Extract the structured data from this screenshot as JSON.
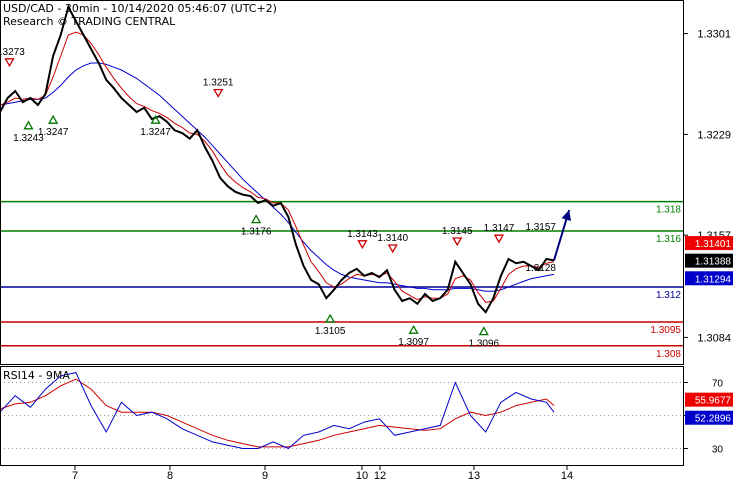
{
  "header": {
    "title": "USD/CAD - 30min - 10/14/2020 05:46:07 (UTC+2)",
    "subtitle": "Research © TRADING CENTRAL"
  },
  "colors": {
    "price": "#000000",
    "ma_fast": "#cc0000",
    "ma_slow": "#0000cc",
    "resistance_green": "#008000",
    "pivot_blue": "#000099",
    "support_red": "#cc0000",
    "arrow": "#000080",
    "current_price_bg": "#000000",
    "last_red_bg": "#ee0000",
    "last_blue_bg": "#0000cc"
  },
  "chart_data": [
    {
      "type": "line",
      "name": "price",
      "x_ticks": [
        "7",
        "8",
        "9",
        "10",
        "12",
        "13",
        "14"
      ],
      "y_ticks": [
        1.3301,
        1.3229,
        1.3157,
        1.3084
      ],
      "ylim": [
        1.3065,
        1.3325
      ],
      "levels": [
        {
          "label": "1.318",
          "value": 1.3181,
          "color": "green"
        },
        {
          "label": "1.316",
          "value": 1.316,
          "color": "green"
        },
        {
          "label": "1.312",
          "value": 1.312,
          "color": "blue"
        },
        {
          "label": "1.3095",
          "value": 1.3095,
          "color": "red"
        },
        {
          "label": "1.308",
          "value": 1.3078,
          "color": "red"
        }
      ],
      "price_tags": [
        {
          "label": "1.31401",
          "value": 1.31401,
          "style": "red"
        },
        {
          "label": "1.31388",
          "value": 1.31388,
          "style": "black"
        },
        {
          "label": "1.31294",
          "value": 1.31294,
          "style": "blue"
        }
      ],
      "annotations": [
        {
          "text": "1.3273",
          "x": 5,
          "y": 1.3273,
          "marker": "down"
        },
        {
          "text": "1.3243",
          "x": 15,
          "y": 1.3243,
          "marker": "up"
        },
        {
          "text": "1.3247",
          "x": 28,
          "y": 1.3247,
          "marker": "up"
        },
        {
          "text": "1.3247",
          "x": 82,
          "y": 1.3247,
          "marker": "up"
        },
        {
          "text": "1.3251",
          "x": 115,
          "y": 1.3251,
          "marker": "down"
        },
        {
          "text": "1.3176",
          "x": 135,
          "y": 1.3176,
          "marker": "up"
        },
        {
          "text": "1.3105",
          "x": 174,
          "y": 1.3105,
          "marker": "up"
        },
        {
          "text": "1.3143",
          "x": 191,
          "y": 1.3143,
          "marker": "down"
        },
        {
          "text": "1.3140",
          "x": 207,
          "y": 1.314,
          "marker": "down"
        },
        {
          "text": "1.3097",
          "x": 218,
          "y": 1.3097,
          "marker": "up"
        },
        {
          "text": "1.3145",
          "x": 241,
          "y": 1.3145,
          "marker": "down"
        },
        {
          "text": "1.3096",
          "x": 255,
          "y": 1.3096,
          "marker": "up"
        },
        {
          "text": "1.3147",
          "x": 263,
          "y": 1.3147,
          "marker": "down"
        },
        {
          "text": "1.3128",
          "x": 285,
          "y": 1.3128,
          "marker": "none"
        },
        {
          "text": "1.3157",
          "x": 285,
          "y": 1.3157,
          "marker": "none"
        }
      ],
      "x": [
        0,
        4,
        8,
        12,
        16,
        20,
        24,
        28,
        32,
        36,
        40,
        44,
        48,
        52,
        56,
        60,
        64,
        68,
        72,
        76,
        80,
        84,
        88,
        92,
        96,
        100,
        104,
        108,
        112,
        116,
        120,
        124,
        128,
        132,
        136,
        140,
        144,
        148,
        152,
        156,
        160,
        164,
        168,
        172,
        176,
        180,
        184,
        188,
        192,
        196,
        200,
        204,
        208,
        212,
        216,
        220,
        224,
        228,
        232,
        236,
        240,
        244,
        248,
        252,
        256,
        260,
        264,
        268,
        272,
        276,
        280,
        284,
        288,
        292
      ],
      "values": [
        1.3245,
        1.3255,
        1.326,
        1.3252,
        1.3255,
        1.325,
        1.3258,
        1.3285,
        1.33,
        1.332,
        1.331,
        1.33,
        1.329,
        1.328,
        1.3268,
        1.3262,
        1.3255,
        1.325,
        1.3245,
        1.3248,
        1.324,
        1.3242,
        1.3238,
        1.3232,
        1.323,
        1.3226,
        1.3232,
        1.322,
        1.321,
        1.3198,
        1.3192,
        1.3188,
        1.3186,
        1.3185,
        1.318,
        1.3182,
        1.3178,
        1.318,
        1.317,
        1.315,
        1.3135,
        1.3125,
        1.3122,
        1.3112,
        1.3118,
        1.3125,
        1.313,
        1.3133,
        1.3128,
        1.313,
        1.3127,
        1.3132,
        1.3118,
        1.311,
        1.3112,
        1.3108,
        1.3115,
        1.311,
        1.3112,
        1.3118,
        1.3138,
        1.313,
        1.3122,
        1.3108,
        1.3102,
        1.3112,
        1.3128,
        1.314,
        1.3137,
        1.3138,
        1.3135,
        1.3132,
        1.314,
        1.3139
      ],
      "ma_fast": [
        1.325,
        1.3252,
        1.3255,
        1.3254,
        1.3255,
        1.3254,
        1.3257,
        1.327,
        1.3285,
        1.33,
        1.3302,
        1.33,
        1.3294,
        1.3286,
        1.3277,
        1.3269,
        1.3262,
        1.3256,
        1.3251,
        1.3249,
        1.3246,
        1.3244,
        1.3241,
        1.3237,
        1.3234,
        1.323,
        1.3229,
        1.3224,
        1.3217,
        1.3208,
        1.32,
        1.3195,
        1.3191,
        1.3188,
        1.3184,
        1.3183,
        1.318,
        1.318,
        1.3175,
        1.3163,
        1.315,
        1.3138,
        1.3131,
        1.3123,
        1.312,
        1.3122,
        1.3126,
        1.3129,
        1.3128,
        1.3129,
        1.3128,
        1.313,
        1.3124,
        1.3117,
        1.3114,
        1.3111,
        1.3113,
        1.3112,
        1.3112,
        1.3115,
        1.3126,
        1.3128,
        1.3125,
        1.3116,
        1.3109,
        1.311,
        1.3119,
        1.3129,
        1.3133,
        1.3135,
        1.3135,
        1.3134,
        1.3137,
        1.3138
      ],
      "ma_slow": [
        1.325,
        1.3251,
        1.3252,
        1.3253,
        1.3254,
        1.3254,
        1.3255,
        1.3259,
        1.3264,
        1.327,
        1.3275,
        1.3278,
        1.328,
        1.328,
        1.3279,
        1.3277,
        1.3275,
        1.3272,
        1.3269,
        1.3265,
        1.3261,
        1.3257,
        1.3252,
        1.3247,
        1.3242,
        1.3237,
        1.3232,
        1.3227,
        1.3221,
        1.3215,
        1.3209,
        1.3203,
        1.3197,
        1.3192,
        1.3187,
        1.3182,
        1.3177,
        1.3172,
        1.3166,
        1.3159,
        1.3152,
        1.3146,
        1.3141,
        1.3136,
        1.3132,
        1.3129,
        1.3127,
        1.3126,
        1.3125,
        1.3124,
        1.3123,
        1.3123,
        1.3122,
        1.3121,
        1.312,
        1.3119,
        1.3119,
        1.3118,
        1.3118,
        1.3118,
        1.3119,
        1.3119,
        1.3119,
        1.3118,
        1.3117,
        1.3117,
        1.3118,
        1.312,
        1.3122,
        1.3124,
        1.3126,
        1.3127,
        1.3128,
        1.3129
      ],
      "projection": [
        [
          292,
          1.3139
        ],
        [
          300,
          1.3175
        ]
      ]
    },
    {
      "type": "line",
      "name": "RSI14 - 9MA",
      "title": "RSI14 - 9MA",
      "y_ticks": [
        70,
        50,
        30
      ],
      "ylim": [
        20,
        80
      ],
      "price_tags": [
        {
          "label": "55.9677",
          "value": 55.9677,
          "style": "red"
        },
        {
          "label": "52.2896",
          "value": 52.2896,
          "style": "blue"
        }
      ],
      "x": [
        0,
        8,
        16,
        24,
        32,
        40,
        48,
        56,
        64,
        72,
        80,
        88,
        96,
        104,
        112,
        120,
        128,
        136,
        144,
        152,
        160,
        168,
        176,
        184,
        192,
        200,
        208,
        216,
        224,
        232,
        240,
        248,
        256,
        264,
        272,
        280,
        288,
        292
      ],
      "rsi": [
        52,
        62,
        55,
        66,
        74,
        76,
        56,
        40,
        58,
        50,
        52,
        48,
        42,
        38,
        34,
        32,
        30,
        30,
        34,
        30,
        38,
        40,
        44,
        42,
        46,
        48,
        38,
        40,
        42,
        44,
        70,
        50,
        40,
        58,
        64,
        60,
        58,
        52
      ],
      "rsi_ma": [
        54,
        57,
        58,
        62,
        68,
        72,
        66,
        56,
        52,
        52,
        52,
        50,
        46,
        42,
        38,
        35,
        33,
        31,
        31,
        31,
        33,
        35,
        38,
        40,
        42,
        44,
        43,
        42,
        41,
        42,
        48,
        52,
        50,
        52,
        56,
        58,
        60,
        56
      ]
    }
  ]
}
